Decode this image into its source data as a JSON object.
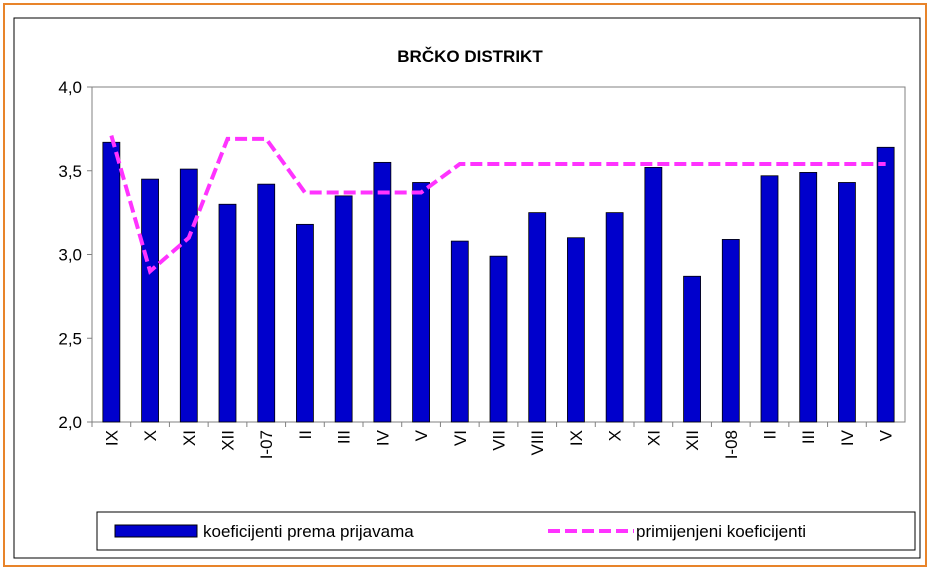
{
  "chart_data": {
    "type": "bar-line",
    "title": "BRČKO DISTRIKT",
    "categories": [
      "IX",
      "X",
      "XI",
      "XII",
      "I-07",
      "II",
      "III",
      "IV",
      "V",
      "VI",
      "VII",
      "VIII",
      "IX",
      "X",
      "XI",
      "XII",
      "I-08",
      "II",
      "III",
      "IV",
      "V"
    ],
    "series": [
      {
        "name": "koeficijenti prema prijavama",
        "type": "bar",
        "color": "#0000cc",
        "values": [
          3.67,
          3.45,
          3.51,
          3.3,
          3.42,
          3.18,
          3.35,
          3.55,
          3.43,
          3.08,
          2.99,
          3.25,
          3.1,
          3.25,
          3.52,
          2.87,
          3.09,
          3.47,
          3.49,
          3.43,
          3.64
        ]
      },
      {
        "name": "primijenjeni koeficijenti",
        "type": "line",
        "color": "#ff33ff",
        "values": [
          3.71,
          2.9,
          3.1,
          3.69,
          3.69,
          3.37,
          3.37,
          3.37,
          3.37,
          3.54,
          3.54,
          3.54,
          3.54,
          3.54,
          3.54,
          3.54,
          3.54,
          3.54,
          3.54,
          3.54,
          3.54
        ]
      }
    ],
    "ylim": [
      2.0,
      4.0
    ],
    "yticks": [
      {
        "value": 2.0,
        "label": "2,0"
      },
      {
        "value": 2.5,
        "label": "2,5"
      },
      {
        "value": 3.0,
        "label": "3,0"
      },
      {
        "value": 3.5,
        "label": "3,5"
      },
      {
        "value": 4.0,
        "label": "4,0"
      }
    ],
    "legend": "bottom"
  }
}
